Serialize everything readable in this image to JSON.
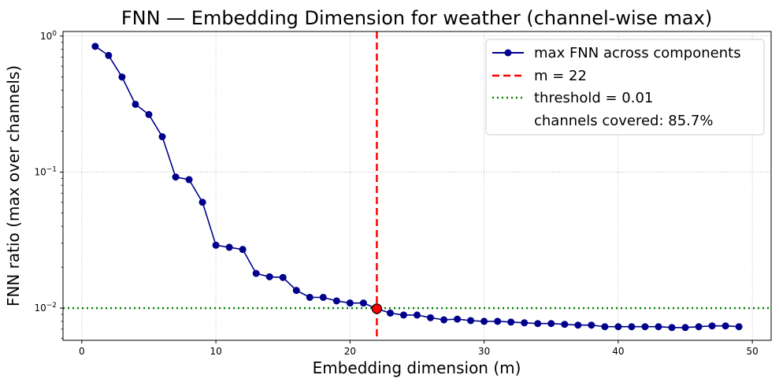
{
  "chart_data": {
    "type": "line",
    "title": "FNN — Embedding Dimension for weather (channel-wise max)",
    "xlabel": "Embedding dimension (m)",
    "ylabel": "FNN ratio (max over channels)",
    "xlim": [
      -1.4,
      51.4
    ],
    "ylim": [
      0.0058,
      1.08
    ],
    "yscale": "log",
    "grid": true,
    "legend_position": "top-right",
    "x_ticks": [
      {
        "value": 0,
        "label": "0"
      },
      {
        "value": 10,
        "label": "10"
      },
      {
        "value": 20,
        "label": "20"
      },
      {
        "value": 30,
        "label": "30"
      },
      {
        "value": 40,
        "label": "40"
      },
      {
        "value": 50,
        "label": "50"
      }
    ],
    "y_ticks": [
      {
        "value": 0.01,
        "label": "10",
        "exp": "−2"
      },
      {
        "value": 0.1,
        "label": "10",
        "exp": "−1"
      },
      {
        "value": 1,
        "label": "10",
        "exp": "0"
      }
    ],
    "series": [
      {
        "name": "max FNN across components",
        "color": "#00008b",
        "marker": "circle",
        "x": [
          1,
          2,
          3,
          4,
          5,
          6,
          7,
          8,
          9,
          10,
          11,
          12,
          13,
          14,
          15,
          16,
          17,
          18,
          19,
          20,
          21,
          22,
          23,
          24,
          25,
          26,
          27,
          28,
          29,
          30,
          31,
          32,
          33,
          34,
          35,
          36,
          37,
          38,
          39,
          40,
          41,
          42,
          43,
          44,
          45,
          46,
          47,
          48,
          49
        ],
        "y": [
          0.84,
          0.72,
          0.5,
          0.315,
          0.265,
          0.182,
          0.092,
          0.088,
          0.06,
          0.029,
          0.028,
          0.027,
          0.018,
          0.017,
          0.0168,
          0.0135,
          0.012,
          0.012,
          0.0113,
          0.0109,
          0.0109,
          0.0099,
          0.0092,
          0.0089,
          0.0089,
          0.0085,
          0.0082,
          0.0083,
          0.0081,
          0.008,
          0.008,
          0.0079,
          0.0078,
          0.0077,
          0.0077,
          0.0076,
          0.0075,
          0.0075,
          0.0073,
          0.0073,
          0.0073,
          0.0073,
          0.0073,
          0.0072,
          0.0072,
          0.0073,
          0.0074,
          0.0074,
          0.0073
        ]
      }
    ],
    "selected_dimension": {
      "label": "m = 22",
      "x": 22,
      "color": "#ff0000",
      "style": "dashed"
    },
    "threshold": {
      "label": "threshold = 0.01",
      "y": 0.01,
      "color": "#008000",
      "style": "dotted"
    },
    "highlight_point": {
      "x": 22,
      "y": 0.0099,
      "color": "#ff0000"
    },
    "legend_extra": "channels covered: 85.7%"
  }
}
